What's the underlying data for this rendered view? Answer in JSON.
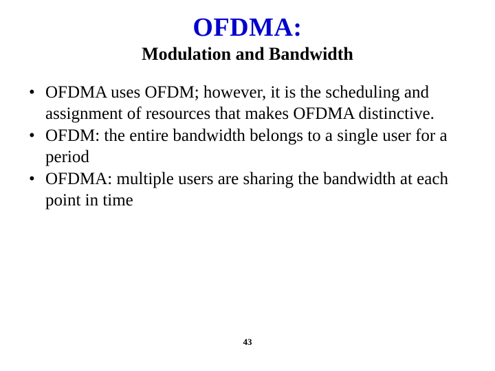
{
  "slide": {
    "title": "OFDMA:",
    "subtitle": "Modulation and Bandwidth",
    "bullets": [
      "OFDMA uses OFDM; however, it is the scheduling and assignment of resources that makes OFDMA distinctive.",
      "OFDM: the entire bandwidth belongs to a single user for a period",
      "OFDMA: multiple users are sharing the bandwidth at each point in time"
    ],
    "page_number": "43",
    "colors": {
      "title_color": "#0000cc",
      "text_color": "#000000",
      "background": "#ffffff"
    },
    "typography": {
      "title_fontsize": 38,
      "subtitle_fontsize": 26,
      "body_fontsize": 25,
      "pagenum_fontsize": 13,
      "font_family": "Times New Roman"
    }
  }
}
